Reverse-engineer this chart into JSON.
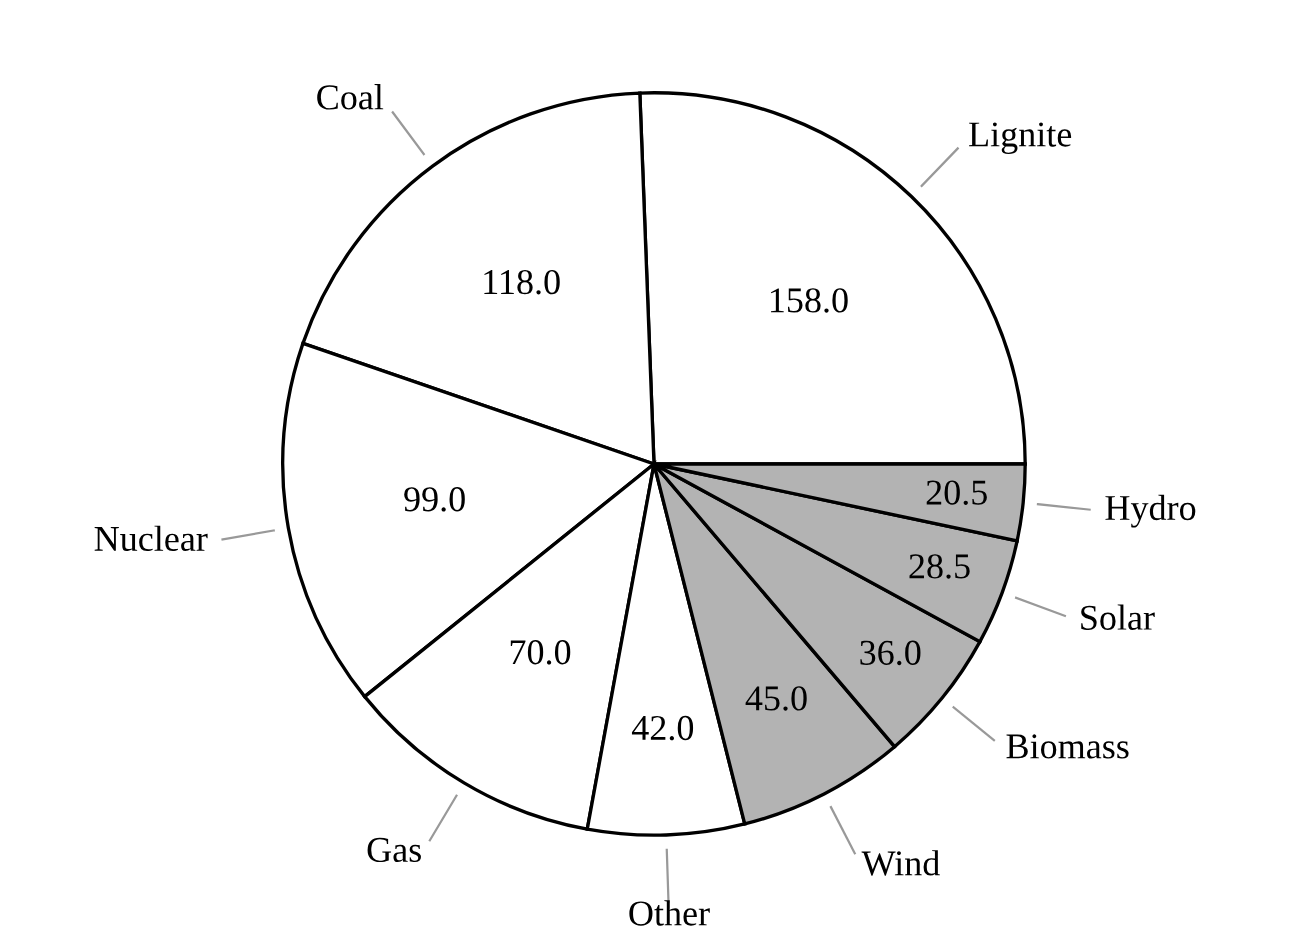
{
  "chart_data": {
    "type": "pie",
    "categories": [
      "Lignite",
      "Coal",
      "Nuclear",
      "Gas",
      "Other",
      "Wind",
      "Biomass",
      "Solar",
      "Hydro"
    ],
    "values": [
      158.0,
      118.0,
      99.0,
      70.0,
      42.0,
      45.0,
      36.0,
      28.5,
      20.5
    ],
    "value_labels": [
      "158.0",
      "118.0",
      "99.0",
      "70.0",
      "42.0",
      "45.0",
      "36.0",
      "28.5",
      "20.5"
    ],
    "colors": [
      "#ffffff",
      "#ffffff",
      "#ffffff",
      "#ffffff",
      "#ffffff",
      "#b3b3b3",
      "#b3b3b3",
      "#b3b3b3",
      "#b3b3b3"
    ],
    "legend": false
  }
}
